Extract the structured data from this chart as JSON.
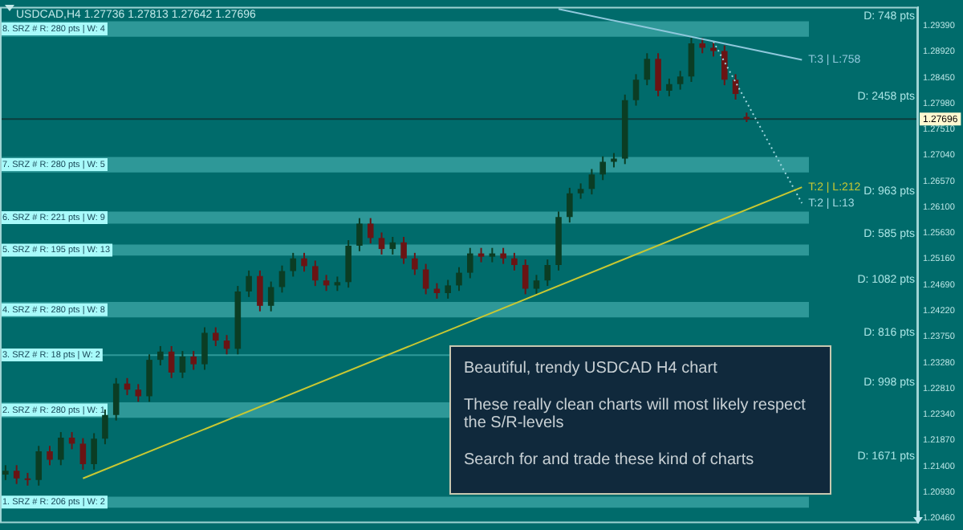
{
  "chart_data": {
    "type": "candlestick",
    "title": "USDCAD,H4 1.27736 1.27813 1.27642 1.27696",
    "categories": [
      null,
      null,
      null,
      null,
      null,
      null,
      null,
      null,
      null,
      null,
      null,
      null,
      null,
      null,
      null,
      null,
      null,
      null,
      null,
      null,
      null,
      null,
      null,
      null,
      null,
      null,
      null,
      null,
      null,
      null,
      null,
      null,
      null,
      null,
      null,
      null,
      null,
      null,
      null,
      null,
      null,
      null,
      null,
      null,
      null,
      null,
      null,
      null,
      null,
      null,
      null,
      null,
      null,
      null,
      null,
      null,
      null,
      null,
      null,
      null,
      null,
      null,
      null,
      null,
      null,
      null,
      null,
      null,
      null,
      null,
      null,
      null,
      null,
      null,
      null,
      null,
      null,
      null,
      null,
      null,
      null,
      null,
      null
    ],
    "ohlc": [
      [
        1.2125,
        1.2142,
        1.2115,
        1.2132
      ],
      [
        1.2132,
        1.2142,
        1.2108,
        1.2118
      ],
      [
        1.2118,
        1.2128,
        1.2105,
        1.2115
      ],
      [
        1.2115,
        1.2177,
        1.2105,
        1.2167
      ],
      [
        1.2167,
        1.2177,
        1.2142,
        1.2152
      ],
      [
        1.2152,
        1.2202,
        1.2142,
        1.2192
      ],
      [
        1.2192,
        1.2202,
        1.2171,
        1.2181
      ],
      [
        1.2181,
        1.2191,
        1.2134,
        1.2144
      ],
      [
        1.2144,
        1.22,
        1.2134,
        1.219
      ],
      [
        1.219,
        1.2243,
        1.218,
        1.2233
      ],
      [
        1.2233,
        1.23,
        1.2223,
        1.229
      ],
      [
        1.229,
        1.23,
        1.2269,
        1.2279
      ],
      [
        1.2279,
        1.2289,
        1.2257,
        1.2267
      ],
      [
        1.2267,
        1.2343,
        1.2257,
        1.2333
      ],
      [
        1.2333,
        1.2358,
        1.2323,
        1.2348
      ],
      [
        1.2348,
        1.2358,
        1.23,
        1.231
      ],
      [
        1.231,
        1.2349,
        1.23,
        1.2339
      ],
      [
        1.2339,
        1.2349,
        1.2315,
        1.2325
      ],
      [
        1.2325,
        1.2392,
        1.2315,
        1.2382
      ],
      [
        1.2382,
        1.2392,
        1.2358,
        1.2368
      ],
      [
        1.2368,
        1.2378,
        1.2343,
        1.2353
      ],
      [
        1.2353,
        1.2467,
        1.2343,
        1.2457
      ],
      [
        1.2457,
        1.2495,
        1.2447,
        1.2485
      ],
      [
        1.2485,
        1.2495,
        1.2421,
        1.2431
      ],
      [
        1.2431,
        1.2475,
        1.2421,
        1.2465
      ],
      [
        1.2465,
        1.2504,
        1.2455,
        1.2494
      ],
      [
        1.2494,
        1.2527,
        1.2484,
        1.2517
      ],
      [
        1.2517,
        1.2527,
        1.2493,
        1.2503
      ],
      [
        1.2503,
        1.2513,
        1.2467,
        1.2477
      ],
      [
        1.2477,
        1.2487,
        1.2458,
        1.2468
      ],
      [
        1.2468,
        1.2484,
        1.2458,
        1.2474
      ],
      [
        1.2474,
        1.255,
        1.2464,
        1.254
      ],
      [
        1.254,
        1.259,
        1.253,
        1.258
      ],
      [
        1.258,
        1.259,
        1.2544,
        1.2554
      ],
      [
        1.2554,
        1.2564,
        1.2524,
        1.2534
      ],
      [
        1.2534,
        1.2556,
        1.2524,
        1.2546
      ],
      [
        1.2546,
        1.2556,
        1.2507,
        1.2517
      ],
      [
        1.2517,
        1.2527,
        1.2487,
        1.2497
      ],
      [
        1.2497,
        1.2507,
        1.2452,
        1.2462
      ],
      [
        1.2462,
        1.2472,
        1.2444,
        1.2454
      ],
      [
        1.2454,
        1.2478,
        1.2444,
        1.2468
      ],
      [
        1.2468,
        1.2501,
        1.2458,
        1.2491
      ],
      [
        1.2491,
        1.2536,
        1.2481,
        1.2526
      ],
      [
        1.2526,
        1.2536,
        1.251,
        1.252
      ],
      [
        1.252,
        1.2536,
        1.251,
        1.2526
      ],
      [
        1.2526,
        1.2536,
        1.2507,
        1.2517
      ],
      [
        1.2517,
        1.2527,
        1.2495,
        1.2505
      ],
      [
        1.2505,
        1.2515,
        1.2452,
        1.2462
      ],
      [
        1.2462,
        1.2487,
        1.2452,
        1.2477
      ],
      [
        1.2477,
        1.2515,
        1.2467,
        1.2505
      ],
      [
        1.2505,
        1.2602,
        1.2495,
        1.2592
      ],
      [
        1.2592,
        1.2645,
        1.2582,
        1.2635
      ],
      [
        1.2635,
        1.2653,
        1.2625,
        1.2643
      ],
      [
        1.2643,
        1.2679,
        1.2633,
        1.2669
      ],
      [
        1.2669,
        1.2702,
        1.2659,
        1.2692
      ],
      [
        1.2692,
        1.2708,
        1.2682,
        1.2698
      ],
      [
        1.2698,
        1.2814,
        1.2688,
        1.2804
      ],
      [
        1.2804,
        1.2851,
        1.2794,
        1.2841
      ],
      [
        1.2841,
        1.2889,
        1.2831,
        1.2879
      ],
      [
        1.2879,
        1.2889,
        1.2811,
        1.2821
      ],
      [
        1.2821,
        1.2843,
        1.2811,
        1.2833
      ],
      [
        1.2833,
        1.2857,
        1.2823,
        1.2847
      ],
      [
        1.2847,
        1.2917,
        1.2837,
        1.2907
      ],
      [
        1.2907,
        1.2917,
        1.2889,
        1.2899
      ],
      [
        1.2899,
        1.2909,
        1.2883,
        1.2893
      ],
      [
        1.2893,
        1.2903,
        1.2831,
        1.2841
      ],
      [
        1.2841,
        1.2851,
        1.2805,
        1.2815
      ],
      [
        1.27736,
        1.27813,
        1.27642,
        1.27696
      ],
      null,
      null,
      null,
      null,
      null,
      null,
      null,
      null,
      null,
      null,
      null,
      null,
      null,
      null,
      null
    ],
    "series": [
      {
        "type": "line",
        "name": "T:2 | L:212",
        "color": "#c8c832",
        "values": [
          null,
          null,
          null,
          null,
          null,
          null,
          null,
          1.2118,
          null,
          null,
          null,
          null,
          null,
          null,
          null,
          null,
          null,
          null,
          null,
          null,
          null,
          null,
          null,
          null,
          null,
          null,
          null,
          null,
          null,
          null,
          null,
          null,
          null,
          null,
          null,
          null,
          null,
          null,
          null,
          null,
          null,
          null,
          null,
          null,
          null,
          null,
          null,
          null,
          null,
          null,
          null,
          null,
          null,
          null,
          null,
          null,
          null,
          null,
          null,
          null,
          null,
          null,
          null,
          null,
          null,
          null,
          null,
          null,
          null,
          null,
          null,
          null,
          1.2646,
          null,
          null,
          null,
          null,
          null,
          null,
          null,
          null,
          null,
          null
        ]
      },
      {
        "type": "line",
        "name": "T:3 | L:758",
        "color": "#8fc8dc",
        "values": [
          null,
          null,
          null,
          null,
          null,
          null,
          null,
          null,
          null,
          null,
          null,
          null,
          null,
          null,
          null,
          null,
          null,
          null,
          null,
          null,
          null,
          null,
          null,
          null,
          null,
          null,
          null,
          null,
          null,
          null,
          null,
          null,
          null,
          null,
          null,
          null,
          null,
          null,
          null,
          null,
          null,
          null,
          null,
          null,
          null,
          null,
          null,
          null,
          null,
          null,
          1.2969,
          null,
          null,
          null,
          null,
          null,
          null,
          null,
          null,
          null,
          null,
          null,
          null,
          null,
          null,
          null,
          null,
          null,
          null,
          null,
          null,
          null,
          1.2877,
          null,
          null,
          null,
          null,
          null,
          null,
          null,
          null,
          null,
          null
        ]
      },
      {
        "type": "line",
        "name": "T:2 | L:13",
        "color": "#a0d8e0",
        "line_style": "dotted",
        "values": [
          null,
          null,
          null,
          null,
          null,
          null,
          null,
          null,
          null,
          null,
          null,
          null,
          null,
          null,
          null,
          null,
          null,
          null,
          null,
          null,
          null,
          null,
          null,
          null,
          null,
          null,
          null,
          null,
          null,
          null,
          null,
          null,
          null,
          null,
          null,
          null,
          null,
          null,
          null,
          null,
          null,
          null,
          null,
          null,
          null,
          null,
          null,
          null,
          null,
          null,
          null,
          null,
          null,
          null,
          null,
          null,
          null,
          null,
          null,
          null,
          null,
          null,
          null,
          null,
          1.291,
          null,
          null,
          null,
          null,
          null,
          null,
          null,
          1.2617,
          null,
          null,
          null,
          null,
          null,
          null,
          null,
          null,
          null,
          null
        ]
      }
    ],
    "ylim": [
      1.2037,
      1.2973
    ],
    "yticks": [
      {
        "value": 1.2046,
        "label": "1.20460"
      },
      {
        "value": 1.2093,
        "label": "1.20930"
      },
      {
        "value": 1.214,
        "label": "1.21400"
      },
      {
        "value": 1.2187,
        "label": "1.21870"
      },
      {
        "value": 1.2234,
        "label": "1.22340"
      },
      {
        "value": 1.2281,
        "label": "1.22810"
      },
      {
        "value": 1.2328,
        "label": "1.23280"
      },
      {
        "value": 1.2375,
        "label": "1.23750"
      },
      {
        "value": 1.2422,
        "label": "1.24220"
      },
      {
        "value": 1.2469,
        "label": "1.24690"
      },
      {
        "value": 1.2516,
        "label": "1.25160"
      },
      {
        "value": 1.2563,
        "label": "1.25630"
      },
      {
        "value": 1.261,
        "label": "1.26100"
      },
      {
        "value": 1.2657,
        "label": "1.26570"
      },
      {
        "value": 1.2704,
        "label": "1.27040"
      },
      {
        "value": 1.2751,
        "label": "1.27510"
      },
      {
        "value": 1.2798,
        "label": "1.27980"
      },
      {
        "value": 1.2845,
        "label": "1.28450"
      },
      {
        "value": 1.2892,
        "label": "1.28920"
      },
      {
        "value": 1.2939,
        "label": "1.29390"
      }
    ],
    "bands": [
      {
        "axis": "y",
        "from": 1.2919,
        "to": 1.2947,
        "label": "8. SRZ # R: 280 pts | W: 4",
        "color": "#2e9898"
      },
      {
        "axis": "y",
        "from": 1.2673,
        "to": 1.2701,
        "label": "7. SRZ # R: 280 pts | W: 5",
        "color": "#2e9898"
      },
      {
        "axis": "y",
        "from": 1.258,
        "to": 1.2602,
        "label": "6. SRZ # R: 221 pts | W: 9",
        "color": "#2e9898"
      },
      {
        "axis": "y",
        "from": 1.2522,
        "to": 1.2542,
        "label": "5. SRZ # R: 195 pts | W: 13",
        "color": "#2e9898"
      },
      {
        "axis": "y",
        "from": 1.241,
        "to": 1.2438,
        "label": "4. SRZ # R: 280 pts | W: 8",
        "color": "#2e9898"
      },
      {
        "axis": "y",
        "from": 1.2341,
        "to": 1.2343,
        "label": "3. SRZ # R: 18 pts | W: 2",
        "color": "#2e9898"
      },
      {
        "axis": "y",
        "from": 1.2228,
        "to": 1.2256,
        "label": "2. SRZ # R: 280 pts | W: 1",
        "color": "#2e9898"
      },
      {
        "axis": "y",
        "from": 1.2065,
        "to": 1.2085,
        "label": "1. SRZ # R: 206 pts | W: 2",
        "color": "#2e9898"
      }
    ],
    "ref_lines": [
      {
        "axis": "y",
        "value": 1.27696,
        "label": "1.27696",
        "color": "#0c3c3c"
      }
    ],
    "annotations": [
      "D: 748 pts",
      "D: 2458 pts",
      "D: 963 pts",
      "D: 585 pts",
      "D: 1082 pts",
      "D: 816 pts",
      "D: 998 pts",
      "D: 1671 pts",
      "Beautiful, trendy USDCAD H4 chart",
      "These really clean charts will most likely respect the S/R-levels",
      "Search for and trade these kind of charts"
    ],
    "tick_labels": "y",
    "legend": false,
    "grid": false,
    "marker": "none"
  }
}
